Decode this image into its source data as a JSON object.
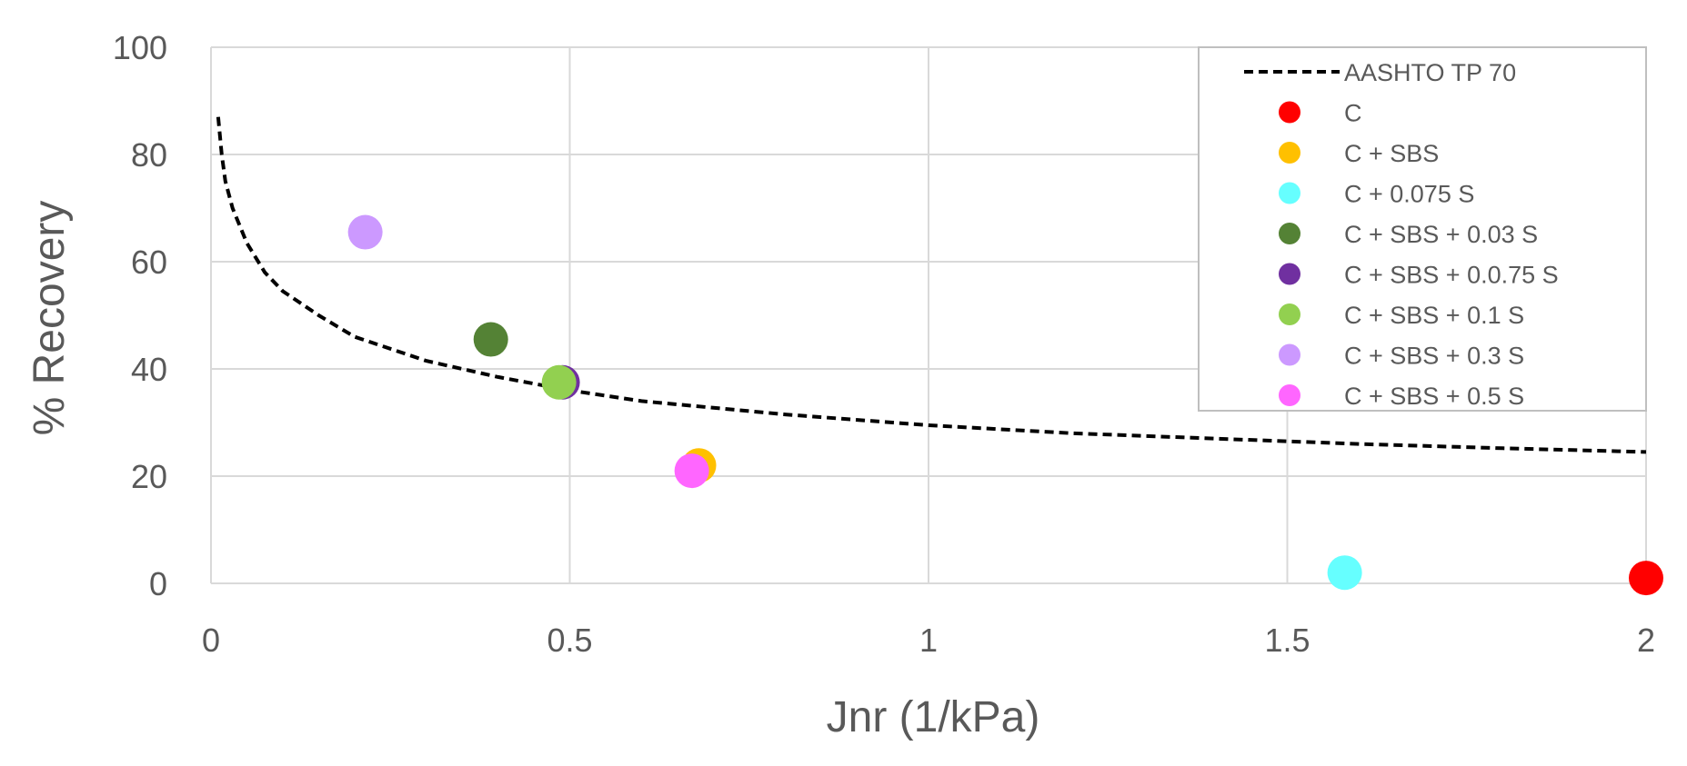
{
  "chart_data": {
    "type": "scatter",
    "xlabel": "Jnr (1/kPa)",
    "ylabel": "% Recovery",
    "xlim": [
      0,
      2
    ],
    "ylim": [
      0,
      100
    ],
    "xticks": [
      0,
      0.5,
      1,
      1.5,
      2
    ],
    "xtick_labels": [
      "0",
      "0.5",
      "1",
      "1.5",
      "2"
    ],
    "yticks": [
      0,
      20,
      40,
      60,
      80,
      100
    ],
    "ytick_labels": [
      "0",
      "20",
      "40",
      "60",
      "80",
      "100"
    ],
    "grid": true,
    "legend_position": "top-right",
    "curve": {
      "name": "AASHTO TP 70",
      "color": "#000000",
      "style": "dashed",
      "x": [
        0.01,
        0.015,
        0.02,
        0.03,
        0.05,
        0.075,
        0.1,
        0.15,
        0.2,
        0.3,
        0.4,
        0.5,
        0.6,
        0.8,
        1.0,
        1.2,
        1.4,
        1.6,
        1.8,
        2.0
      ],
      "y": [
        87,
        80,
        75,
        70,
        63.5,
        58,
        54.5,
        50,
        46,
        41.5,
        38.5,
        36,
        34,
        31.5,
        29.5,
        28,
        27,
        26,
        25.2,
        24.5
      ]
    },
    "series": [
      {
        "name": "C",
        "color": "#FF0000",
        "x": [
          2.0
        ],
        "y": [
          1
        ]
      },
      {
        "name": "C + SBS",
        "color": "#FFC000",
        "x": [
          0.68
        ],
        "y": [
          22
        ]
      },
      {
        "name": "C + 0.075 S",
        "color": "#66FFFF",
        "x": [
          1.58
        ],
        "y": [
          2
        ]
      },
      {
        "name": "C + SBS + 0.03 S",
        "color": "#548235",
        "x": [
          0.39
        ],
        "y": [
          45.5
        ]
      },
      {
        "name": "C + SBS + 0.0.75 S",
        "color": "#7030A0",
        "x": [
          0.49
        ],
        "y": [
          37.5
        ]
      },
      {
        "name": "C + SBS + 0.1 S",
        "color": "#92D050",
        "x": [
          0.485
        ],
        "y": [
          37.5
        ]
      },
      {
        "name": "C + SBS + 0.3 S",
        "color": "#CC99FF",
        "x": [
          0.215
        ],
        "y": [
          65.5
        ]
      },
      {
        "name": "C + SBS + 0.5 S",
        "color": "#FF66FF",
        "x": [
          0.67
        ],
        "y": [
          21
        ]
      }
    ]
  }
}
